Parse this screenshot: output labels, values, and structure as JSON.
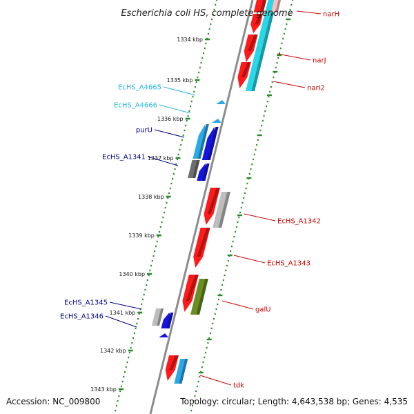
{
  "title": "Escherichia coli HS, complete genome",
  "footer": {
    "accession": "Accession: NC_009800",
    "summary": "Topology: circular; Length: 4,643,538 bp; Genes: 4,535"
  },
  "colors": {
    "backbone": "#8c8c8c",
    "tick": "#2a8a2a",
    "forward_label": "#cc0000",
    "reverse_label": "#00008b",
    "reverse_label_alt": "#29b6e0",
    "gene_red": "#ff1a1a",
    "gene_cyan": "#29d8e8",
    "gene_sky": "#2aa9e6",
    "gene_blue": "#1515e0",
    "gene_gray": "#6e6e6e",
    "gene_lightgray": "#bdbdbd",
    "gene_olive": "#6b8e23"
  },
  "ticks": [
    {
      "label": "1334 kbp"
    },
    {
      "label": "1335 kbp"
    },
    {
      "label": "1336 kbp"
    },
    {
      "label": "1337 kbp"
    },
    {
      "label": "1338 kbp"
    },
    {
      "label": "1339 kbp"
    },
    {
      "label": "1340 kbp"
    },
    {
      "label": "1341 kbp"
    },
    {
      "label": "1342 kbp"
    },
    {
      "label": "1343 kbp"
    }
  ],
  "genes": [
    {
      "label": "narH",
      "strand": "forward",
      "color": "gene_red"
    },
    {
      "label": "narJ",
      "strand": "forward",
      "color": "gene_red"
    },
    {
      "label": "narI2",
      "strand": "forward",
      "color": "gene_red"
    },
    {
      "label": "EcHS_A4665",
      "strand": "reverse",
      "color": "gene_sky"
    },
    {
      "label": "EcHS_A4666",
      "strand": "reverse",
      "color": "gene_sky"
    },
    {
      "label": "purU",
      "strand": "reverse",
      "color": "gene_blue"
    },
    {
      "label": "EcHS_A1341",
      "strand": "reverse",
      "color": "gene_blue"
    },
    {
      "label": "EcHS_A1342",
      "strand": "forward",
      "color": "gene_red"
    },
    {
      "label": "EcHS_A1343",
      "strand": "forward",
      "color": "gene_red"
    },
    {
      "label": "galU",
      "strand": "forward",
      "color": "gene_red"
    },
    {
      "label": "EcHS_A1345",
      "strand": "reverse",
      "color": "gene_blue"
    },
    {
      "label": "EcHS_A1346",
      "strand": "reverse",
      "color": "gene_blue"
    },
    {
      "label": "tdk",
      "strand": "forward",
      "color": "gene_red"
    }
  ]
}
